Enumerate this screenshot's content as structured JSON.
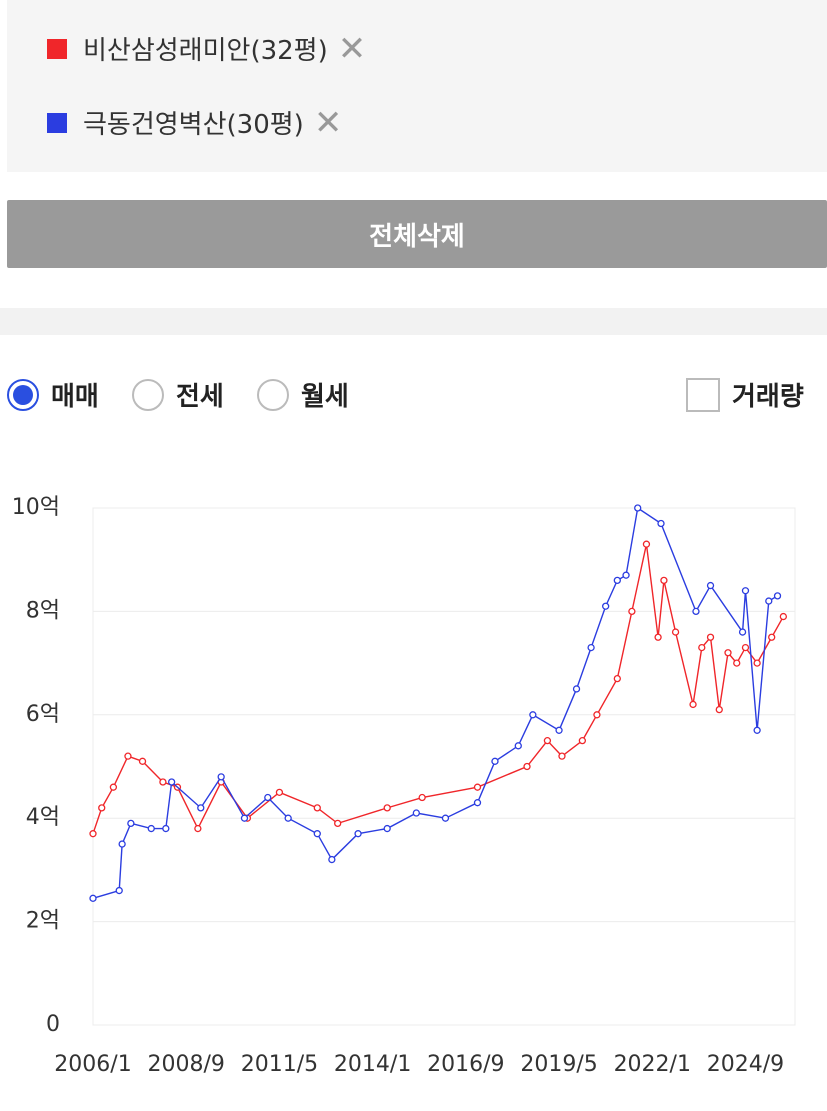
{
  "controls": {
    "delete_all": "전체삭제",
    "radios": [
      "매매",
      "전세",
      "월세"
    ],
    "volume": "거래량"
  },
  "chart_data": {
    "type": "line",
    "xlim": [
      "2006/1",
      "2026/2"
    ],
    "xticks": [
      "2006/1",
      "2008/9",
      "2011/5",
      "2014/1",
      "2016/9",
      "2019/5",
      "2022/1",
      "2024/9"
    ],
    "ylim": [
      0,
      10
    ],
    "yticks": [
      0,
      {
        "value": 2,
        "label": "2억"
      },
      {
        "value": 4,
        "label": "4억"
      },
      {
        "value": 6,
        "label": "6억"
      },
      {
        "value": 8,
        "label": "8억"
      },
      {
        "value": 10,
        "label": "10억"
      }
    ],
    "grid": true,
    "series": [
      {
        "name": "비산삼성래미안(32평)",
        "color": "#f0262a",
        "x": [
          "2006/1",
          "2006/4",
          "2006/8",
          "2007/1",
          "2007/6",
          "2008/1",
          "2008/6",
          "2009/1",
          "2009/9",
          "2010/6",
          "2011/5",
          "2012/6",
          "2013/1",
          "2014/6",
          "2015/6",
          "2017/1",
          "2018/6",
          "2019/1",
          "2019/6",
          "2020/1",
          "2020/6",
          "2021/1",
          "2021/6",
          "2021/11",
          "2022/3",
          "2022/5",
          "2022/9",
          "2023/3",
          "2023/6",
          "2023/9",
          "2023/12",
          "2024/3",
          "2024/6",
          "2024/9",
          "2025/1",
          "2025/6",
          "2025/10"
        ],
        "values": [
          3.7,
          4.2,
          4.6,
          5.2,
          5.1,
          4.7,
          4.6,
          3.8,
          4.7,
          4.0,
          4.5,
          4.2,
          3.9,
          4.2,
          4.4,
          4.6,
          5.0,
          5.5,
          5.2,
          5.5,
          6.0,
          6.7,
          8.0,
          9.3,
          7.5,
          8.6,
          7.6,
          6.2,
          7.3,
          7.5,
          6.1,
          7.2,
          7.0,
          7.3,
          7.0,
          7.5,
          7.9
        ]
      },
      {
        "name": "극동건영벽산(30평)",
        "color": "#2b3de0",
        "x": [
          "2006/1",
          "2006/10",
          "2006/11",
          "2007/2",
          "2007/9",
          "2008/2",
          "2008/4",
          "2009/2",
          "2009/9",
          "2010/5",
          "2011/1",
          "2011/8",
          "2012/6",
          "2012/11",
          "2013/8",
          "2014/6",
          "2015/4",
          "2016/2",
          "2017/1",
          "2017/7",
          "2018/3",
          "2018/8",
          "2019/5",
          "2019/11",
          "2020/4",
          "2020/9",
          "2021/1",
          "2021/4",
          "2021/8",
          "2022/4",
          "2023/4",
          "2023/9",
          "2024/8",
          "2024/9",
          "2025/1",
          "2025/5",
          "2025/8"
        ],
        "values": [
          2.45,
          2.6,
          3.5,
          3.9,
          3.8,
          3.8,
          4.7,
          4.2,
          4.8,
          4.0,
          4.4,
          4.0,
          3.7,
          3.2,
          3.7,
          3.8,
          4.1,
          4.0,
          4.3,
          5.1,
          5.4,
          6.0,
          5.7,
          6.5,
          7.3,
          8.1,
          8.6,
          8.7,
          10.0,
          9.7,
          8.0,
          8.5,
          7.6,
          8.4,
          5.7,
          8.2,
          8.3
        ]
      }
    ]
  }
}
